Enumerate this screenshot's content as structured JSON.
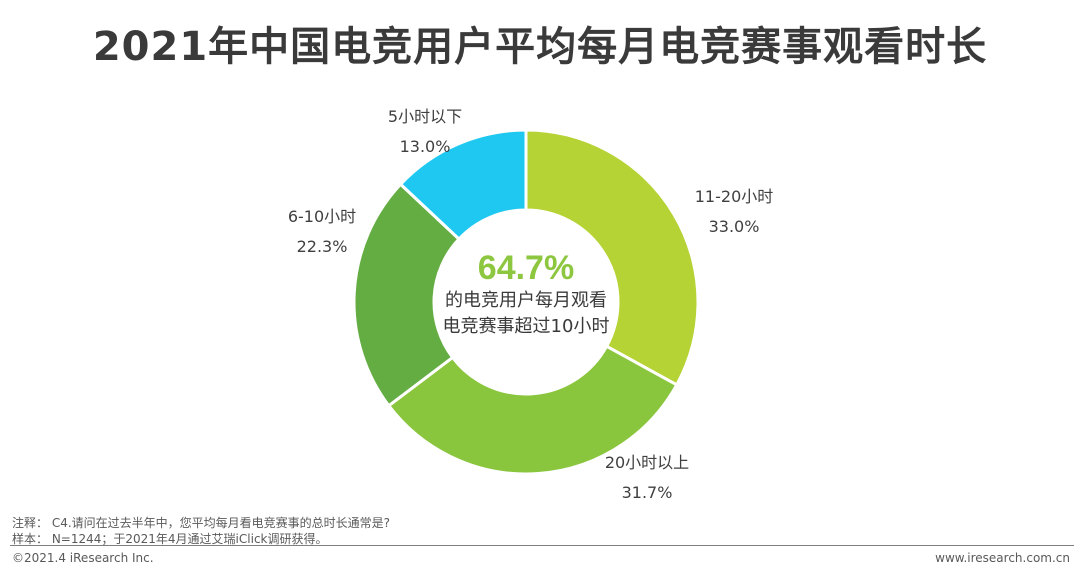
{
  "title": "2021年中国电竞用户平均每月电竞赛事观看时长",
  "chart_data": {
    "type": "pie",
    "donut": true,
    "slices": [
      {
        "label": "11-20小时",
        "value": 33.0,
        "value_label": "33.0%",
        "color": "#b5d334"
      },
      {
        "label": "20小时以上",
        "value": 31.7,
        "value_label": "31.7%",
        "color": "#8ac53e"
      },
      {
        "label": "6-10小时",
        "value": 22.3,
        "value_label": "22.3%",
        "color": "#64ad43"
      },
      {
        "label": "5小时以下",
        "value": 13.0,
        "value_label": "13.0%",
        "color": "#1ec8f1"
      }
    ],
    "center": {
      "value": "64.7%",
      "value_color": "#8dc63f",
      "line1": "的电竞用户每月观看",
      "line2": "电竞赛事超过10小时"
    }
  },
  "notes": {
    "line1": "注释：  C4.请问在过去半年中，您平均每月看电竞赛事的总时长通常是?",
    "line2": "样本：  N=1244；于2021年4月通过艾瑞iClick调研获得。"
  },
  "footer": {
    "left": "©2021.4 iResearch Inc.",
    "right": "www.iresearch.com.cn"
  }
}
